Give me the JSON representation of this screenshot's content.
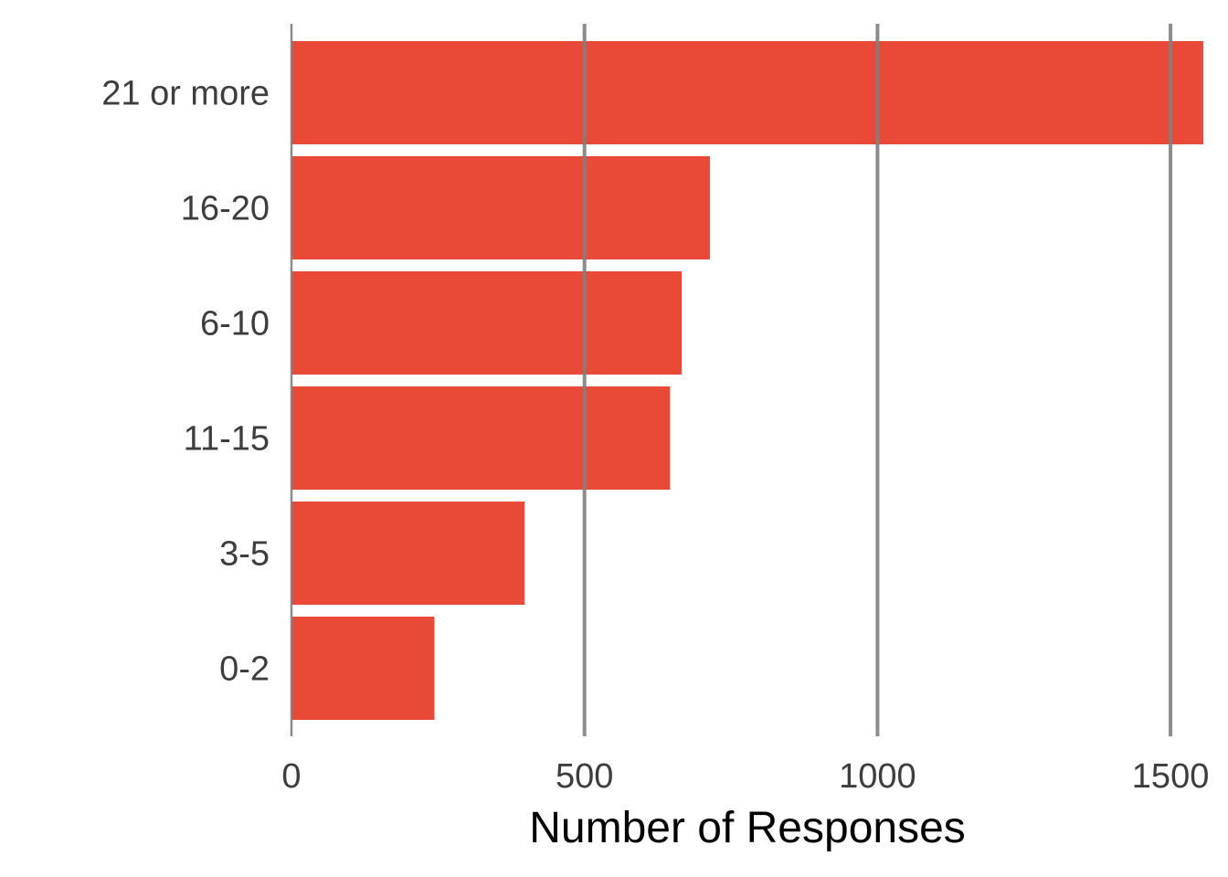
{
  "chart_data": {
    "type": "bar",
    "orientation": "horizontal",
    "categories": [
      "21 or more",
      "16-20",
      "6-10",
      "11-15",
      "3-5",
      "0-2"
    ],
    "values": [
      1556,
      714,
      666,
      646,
      398,
      244
    ],
    "xlabel": "Number of Responses",
    "ylabel": "",
    "xlim": [
      0,
      1556
    ],
    "xticks": [
      0,
      500,
      1000,
      1500
    ],
    "xtick_labels": [
      "0",
      "500",
      "1000",
      "1500"
    ],
    "grid": "vertical",
    "bar_color": "#e84a37",
    "grid_color": "#7f7f7f"
  }
}
